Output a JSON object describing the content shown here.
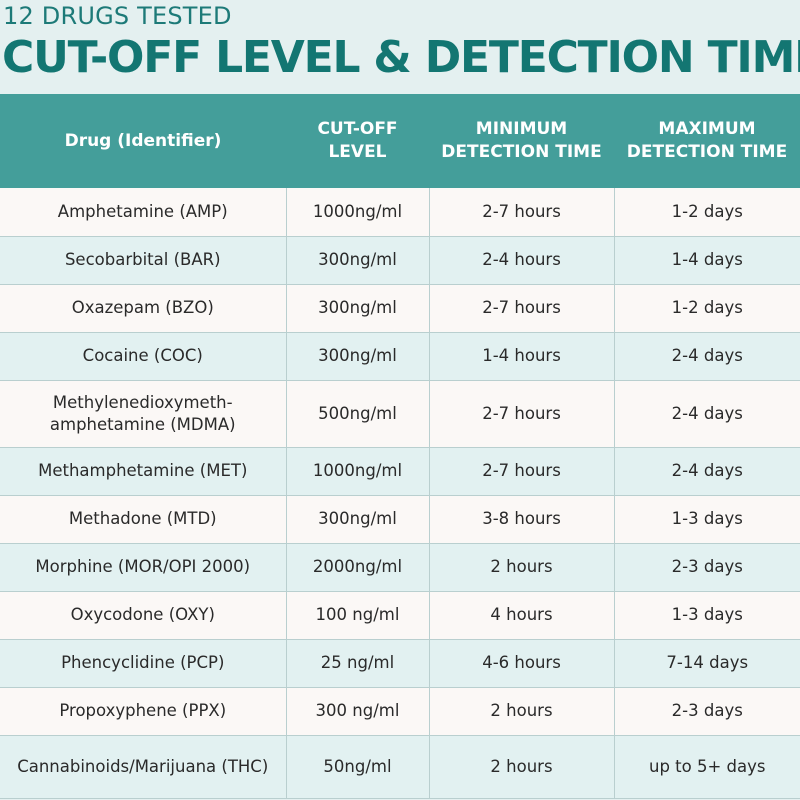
{
  "header": {
    "subtitle": "12 DRUGS TESTED",
    "title": "CUT-OFF LEVEL & DETECTION TIME"
  },
  "table": {
    "columns": [
      {
        "line1": "Drug (Identifier)",
        "line2": ""
      },
      {
        "line1": "CUT-OFF",
        "line2": "LEVEL"
      },
      {
        "line1": "MINIMUM",
        "line2": "DETECTION TIME"
      },
      {
        "line1": "MAXIMUM",
        "line2": "DETECTION TIME"
      }
    ],
    "rows": [
      {
        "drug": "Amphetamine (AMP)",
        "cutoff": "1000ng/ml",
        "min": "2-7 hours",
        "max": "1-2 days"
      },
      {
        "drug": "Secobarbital (BAR)",
        "cutoff": "300ng/ml",
        "min": "2-4 hours",
        "max": "1-4 days"
      },
      {
        "drug": "Oxazepam (BZO)",
        "cutoff": "300ng/ml",
        "min": "2-7 hours",
        "max": "1-2 days"
      },
      {
        "drug": "Cocaine (COC)",
        "cutoff": "300ng/ml",
        "min": "1-4 hours",
        "max": "2-4 days"
      },
      {
        "drug_line1": "Methylenedioxymeth-",
        "drug_line2": "amphetamine (MDMA)",
        "cutoff": "500ng/ml",
        "min": "2-7 hours",
        "max": "2-4 days"
      },
      {
        "drug": "Methamphetamine (MET)",
        "cutoff": "1000ng/ml",
        "min": "2-7 hours",
        "max": "2-4 days"
      },
      {
        "drug": "Methadone (MTD)",
        "cutoff": "300ng/ml",
        "min": "3-8 hours",
        "max": "1-3 days"
      },
      {
        "drug": "Morphine (MOR/OPI 2000)",
        "cutoff": "2000ng/ml",
        "min": "2 hours",
        "max": "2-3 days"
      },
      {
        "drug": "Oxycodone (OXY)",
        "cutoff": "100 ng/ml",
        "min": "4 hours",
        "max": "1-3 days"
      },
      {
        "drug": "Phencyclidine (PCP)",
        "cutoff": "25 ng/ml",
        "min": "4-6 hours",
        "max": "7-14 days"
      },
      {
        "drug": "Propoxyphene (PPX)",
        "cutoff": "300 ng/ml",
        "min": "2 hours",
        "max": "2-3 days"
      },
      {
        "drug": "Cannabinoids/Marijuana (THC)",
        "cutoff": "50ng/ml",
        "min": "2 hours",
        "max": "up to 5+ days"
      }
    ]
  },
  "colors": {
    "title": "#137672",
    "header_bg": "#449e9a",
    "row_light": "#fbf8f6",
    "row_teal": "#e2f1f1"
  }
}
